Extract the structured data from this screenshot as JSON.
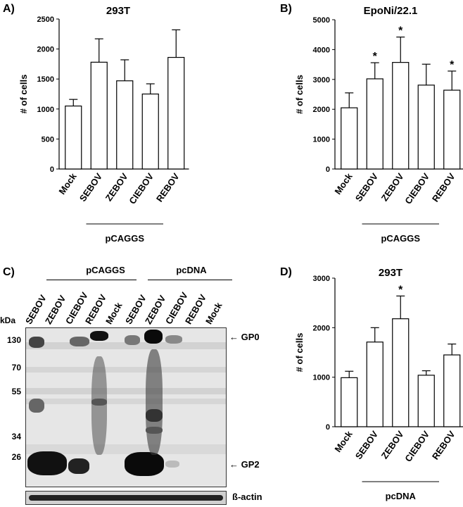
{
  "chart_data": [
    {
      "panel": "A)",
      "type": "bar",
      "title": "293T",
      "ylabel": "# of cells",
      "xlabel": "",
      "ylim": [
        0,
        2500
      ],
      "yticks": [
        0,
        500,
        1000,
        1500,
        2000,
        2500
      ],
      "categories": [
        "Mock",
        "SEBOV",
        "ZEBOV",
        "CIEBOV",
        "REBOV"
      ],
      "values": [
        1050,
        1780,
        1470,
        1250,
        1860
      ],
      "errors": [
        110,
        390,
        350,
        170,
        460
      ],
      "significance": [
        "",
        "",
        "",
        "",
        ""
      ],
      "group_label": "pCAGGS",
      "group_span": [
        1,
        4
      ],
      "grid": false
    },
    {
      "panel": "B)",
      "type": "bar",
      "title": "EpoNi/22.1",
      "ylabel": "# of cells",
      "xlabel": "",
      "ylim": [
        0,
        5000
      ],
      "yticks": [
        0,
        1000,
        2000,
        3000,
        4000,
        5000
      ],
      "categories": [
        "Mock",
        "SEBOV",
        "ZEBOV",
        "CIEBOV",
        "REBOV"
      ],
      "values": [
        2050,
        3020,
        3570,
        2810,
        2640
      ],
      "errors": [
        500,
        540,
        850,
        700,
        640
      ],
      "significance": [
        "",
        "*",
        "*",
        "",
        "*"
      ],
      "group_label": "pCAGGS",
      "group_span": [
        1,
        4
      ],
      "grid": false
    },
    {
      "panel": "D)",
      "type": "bar",
      "title": "293T",
      "ylabel": "# of cells",
      "xlabel": "",
      "ylim": [
        0,
        3000
      ],
      "yticks": [
        0,
        1000,
        2000,
        3000
      ],
      "categories": [
        "Mock",
        "SEBOV",
        "ZEBOV",
        "CIEBOV",
        "REBOV"
      ],
      "values": [
        990,
        1710,
        2180,
        1040,
        1450
      ],
      "errors": [
        130,
        290,
        460,
        90,
        220
      ],
      "significance": [
        "",
        "",
        "*",
        "",
        ""
      ],
      "group_label": "pcDNA",
      "group_span": [
        1,
        4
      ],
      "grid": false
    }
  ],
  "blot": {
    "panel": "C)",
    "groups": [
      {
        "label": "pCAGGS",
        "lanes": [
          "SEBOV",
          "ZEBOV",
          "CIEBOV",
          "REBOV",
          "Mock"
        ]
      },
      {
        "label": "pcDNA",
        "lanes": [
          "SEBOV",
          "ZEBOV",
          "CIEBOV",
          "REBOV",
          "Mock"
        ]
      }
    ],
    "mw_unit": "kDa",
    "mw_markers": [
      "130",
      "70",
      "55",
      "34",
      "26"
    ],
    "band_labels": {
      "gp0": "GP0",
      "gp2": "GP2",
      "loading": "ß-actin"
    },
    "arrow": "←"
  }
}
